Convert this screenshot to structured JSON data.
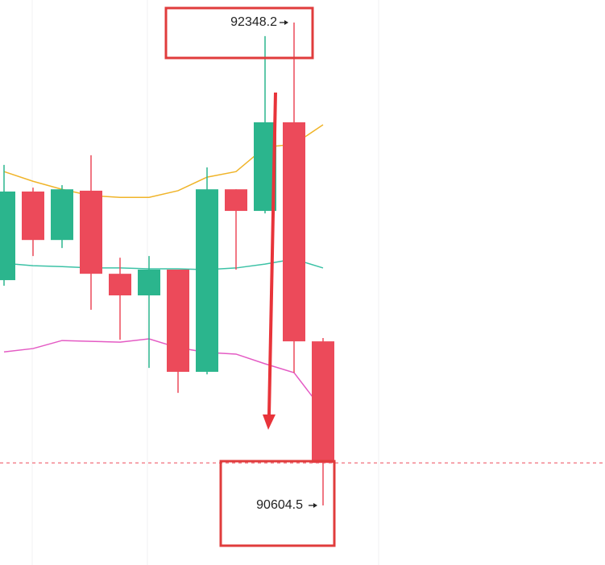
{
  "chart_data": {
    "type": "candlestick",
    "categories": [
      null,
      null,
      null,
      null,
      null,
      null,
      null,
      null,
      null,
      null,
      null,
      null
    ],
    "open": [
      91418,
      91738,
      91563,
      91741,
      91441,
      91363,
      91456,
      91087,
      91746,
      91668,
      91988,
      91197
    ],
    "high": [
      91834,
      91752,
      91761,
      91869,
      91499,
      91505,
      91456,
      91825,
      91746,
      92299,
      92348.2,
      91209
    ],
    "low": [
      91398,
      91505,
      91534,
      91311,
      91203,
      91101,
      91011,
      91078,
      91456,
      91659,
      91084,
      90604.5
    ],
    "close": [
      91738,
      91563,
      91746,
      91441,
      91363,
      91456,
      91087,
      91746,
      91668,
      91988,
      91197,
      90758
    ],
    "up_color": "#2bb58d",
    "down_color": "#ec4a5a",
    "series": [
      {
        "color": "#f0b429",
        "values": [
          91810,
          91775,
          91746,
          91723,
          91717,
          91717,
          91741,
          91790,
          91810,
          91898,
          91909,
          91979
        ]
      },
      {
        "color": "#3cc2a6",
        "values": [
          91479,
          91470,
          91467,
          91462,
          91462,
          91459,
          91459,
          91456,
          91462,
          91476,
          91494,
          91462
        ]
      },
      {
        "color": "#e45bc4",
        "values": [
          91159,
          91171,
          91200,
          91197,
          91194,
          91206,
          91174,
          91157,
          91151,
          91116,
          91084,
          90947
        ]
      }
    ],
    "ylim": [
      90389.4,
      92429.6
    ]
  }
}
